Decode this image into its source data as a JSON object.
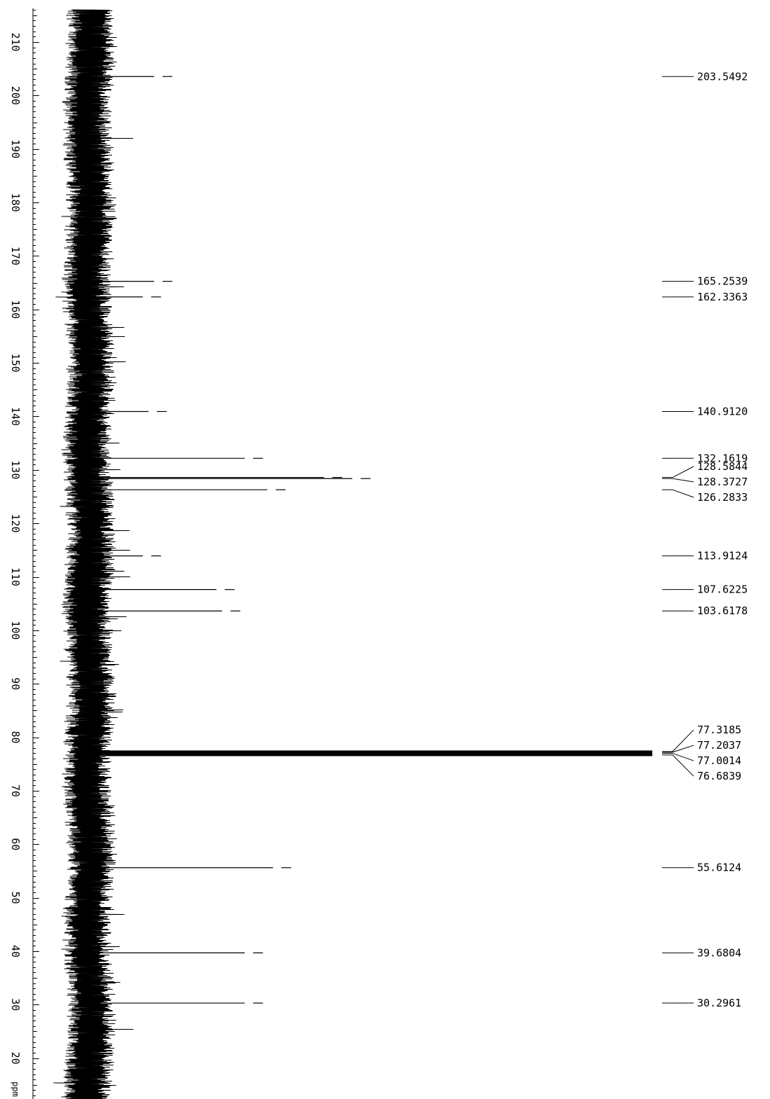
{
  "chart_data": {
    "type": "line",
    "orientation": "vertical",
    "xlabel": "ppm",
    "x_range": [
      8.2,
      216.3
    ],
    "x_ticks": [
      210,
      200,
      190,
      180,
      170,
      160,
      150,
      140,
      130,
      120,
      110,
      100,
      90,
      80,
      70,
      60,
      50,
      40,
      30,
      20
    ],
    "peaks": [
      {
        "shift": 203.5492,
        "intensity": 0.12
      },
      {
        "shift": 165.2539,
        "intensity": 0.12
      },
      {
        "shift": 162.3363,
        "intensity": 0.1
      },
      {
        "shift": 140.912,
        "intensity": 0.11
      },
      {
        "shift": 132.1619,
        "intensity": 0.28
      },
      {
        "shift": 128.5844,
        "intensity": 0.42
      },
      {
        "shift": 128.3727,
        "intensity": 0.47
      },
      {
        "shift": 126.2833,
        "intensity": 0.32
      },
      {
        "shift": 113.9124,
        "intensity": 0.1
      },
      {
        "shift": 107.6225,
        "intensity": 0.23
      },
      {
        "shift": 103.6178,
        "intensity": 0.24
      },
      {
        "shift": 77.3185,
        "intensity": 0.3
      },
      {
        "shift": 77.2037,
        "intensity": 0.31
      },
      {
        "shift": 77.0014,
        "intensity": 1.0
      },
      {
        "shift": 76.6839,
        "intensity": 0.28
      },
      {
        "shift": 55.6124,
        "intensity": 0.33
      },
      {
        "shift": 39.6804,
        "intensity": 0.28
      },
      {
        "shift": 30.2961,
        "intensity": 0.28
      }
    ],
    "peak_labels": [
      "203.5492",
      "165.2539",
      "162.3363",
      "140.9120",
      "132.1619",
      "128.5844",
      "128.3727",
      "126.2833",
      "113.9124",
      "107.6225",
      "103.6178",
      "77.3185",
      "77.2037",
      "77.0014",
      "76.6839",
      "55.6124",
      "39.6804",
      "30.2961"
    ]
  }
}
